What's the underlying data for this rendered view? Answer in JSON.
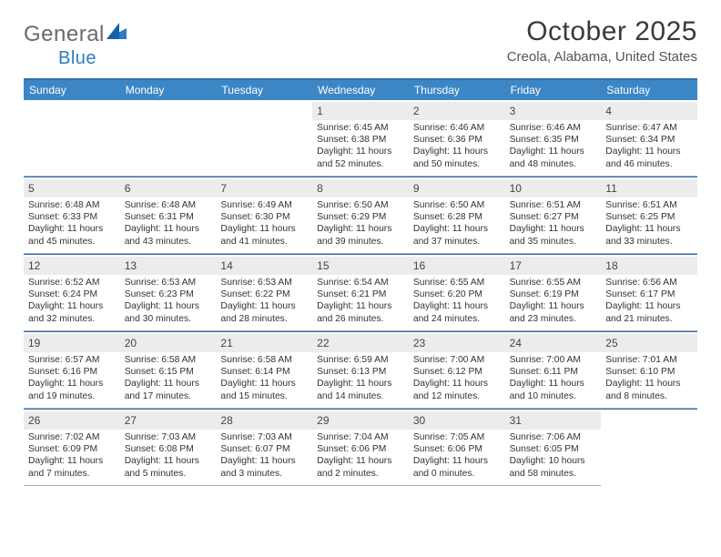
{
  "logo": {
    "general": "General",
    "blue": "Blue"
  },
  "title": "October 2025",
  "location": "Creola, Alabama, United States",
  "weekday_bg": "#3d86c6",
  "weekday_border": "#2e6fa8",
  "daynum_bg": "#ececec",
  "weekdays": [
    "Sunday",
    "Monday",
    "Tuesday",
    "Wednesday",
    "Thursday",
    "Friday",
    "Saturday"
  ],
  "blank_leading": 3,
  "days": [
    {
      "n": "1",
      "sr": "Sunrise: 6:45 AM",
      "ss": "Sunset: 6:38 PM",
      "dl": "Daylight: 11 hours and 52 minutes."
    },
    {
      "n": "2",
      "sr": "Sunrise: 6:46 AM",
      "ss": "Sunset: 6:36 PM",
      "dl": "Daylight: 11 hours and 50 minutes."
    },
    {
      "n": "3",
      "sr": "Sunrise: 6:46 AM",
      "ss": "Sunset: 6:35 PM",
      "dl": "Daylight: 11 hours and 48 minutes."
    },
    {
      "n": "4",
      "sr": "Sunrise: 6:47 AM",
      "ss": "Sunset: 6:34 PM",
      "dl": "Daylight: 11 hours and 46 minutes."
    },
    {
      "n": "5",
      "sr": "Sunrise: 6:48 AM",
      "ss": "Sunset: 6:33 PM",
      "dl": "Daylight: 11 hours and 45 minutes."
    },
    {
      "n": "6",
      "sr": "Sunrise: 6:48 AM",
      "ss": "Sunset: 6:31 PM",
      "dl": "Daylight: 11 hours and 43 minutes."
    },
    {
      "n": "7",
      "sr": "Sunrise: 6:49 AM",
      "ss": "Sunset: 6:30 PM",
      "dl": "Daylight: 11 hours and 41 minutes."
    },
    {
      "n": "8",
      "sr": "Sunrise: 6:50 AM",
      "ss": "Sunset: 6:29 PM",
      "dl": "Daylight: 11 hours and 39 minutes."
    },
    {
      "n": "9",
      "sr": "Sunrise: 6:50 AM",
      "ss": "Sunset: 6:28 PM",
      "dl": "Daylight: 11 hours and 37 minutes."
    },
    {
      "n": "10",
      "sr": "Sunrise: 6:51 AM",
      "ss": "Sunset: 6:27 PM",
      "dl": "Daylight: 11 hours and 35 minutes."
    },
    {
      "n": "11",
      "sr": "Sunrise: 6:51 AM",
      "ss": "Sunset: 6:25 PM",
      "dl": "Daylight: 11 hours and 33 minutes."
    },
    {
      "n": "12",
      "sr": "Sunrise: 6:52 AM",
      "ss": "Sunset: 6:24 PM",
      "dl": "Daylight: 11 hours and 32 minutes."
    },
    {
      "n": "13",
      "sr": "Sunrise: 6:53 AM",
      "ss": "Sunset: 6:23 PM",
      "dl": "Daylight: 11 hours and 30 minutes."
    },
    {
      "n": "14",
      "sr": "Sunrise: 6:53 AM",
      "ss": "Sunset: 6:22 PM",
      "dl": "Daylight: 11 hours and 28 minutes."
    },
    {
      "n": "15",
      "sr": "Sunrise: 6:54 AM",
      "ss": "Sunset: 6:21 PM",
      "dl": "Daylight: 11 hours and 26 minutes."
    },
    {
      "n": "16",
      "sr": "Sunrise: 6:55 AM",
      "ss": "Sunset: 6:20 PM",
      "dl": "Daylight: 11 hours and 24 minutes."
    },
    {
      "n": "17",
      "sr": "Sunrise: 6:55 AM",
      "ss": "Sunset: 6:19 PM",
      "dl": "Daylight: 11 hours and 23 minutes."
    },
    {
      "n": "18",
      "sr": "Sunrise: 6:56 AM",
      "ss": "Sunset: 6:17 PM",
      "dl": "Daylight: 11 hours and 21 minutes."
    },
    {
      "n": "19",
      "sr": "Sunrise: 6:57 AM",
      "ss": "Sunset: 6:16 PM",
      "dl": "Daylight: 11 hours and 19 minutes."
    },
    {
      "n": "20",
      "sr": "Sunrise: 6:58 AM",
      "ss": "Sunset: 6:15 PM",
      "dl": "Daylight: 11 hours and 17 minutes."
    },
    {
      "n": "21",
      "sr": "Sunrise: 6:58 AM",
      "ss": "Sunset: 6:14 PM",
      "dl": "Daylight: 11 hours and 15 minutes."
    },
    {
      "n": "22",
      "sr": "Sunrise: 6:59 AM",
      "ss": "Sunset: 6:13 PM",
      "dl": "Daylight: 11 hours and 14 minutes."
    },
    {
      "n": "23",
      "sr": "Sunrise: 7:00 AM",
      "ss": "Sunset: 6:12 PM",
      "dl": "Daylight: 11 hours and 12 minutes."
    },
    {
      "n": "24",
      "sr": "Sunrise: 7:00 AM",
      "ss": "Sunset: 6:11 PM",
      "dl": "Daylight: 11 hours and 10 minutes."
    },
    {
      "n": "25",
      "sr": "Sunrise: 7:01 AM",
      "ss": "Sunset: 6:10 PM",
      "dl": "Daylight: 11 hours and 8 minutes."
    },
    {
      "n": "26",
      "sr": "Sunrise: 7:02 AM",
      "ss": "Sunset: 6:09 PM",
      "dl": "Daylight: 11 hours and 7 minutes."
    },
    {
      "n": "27",
      "sr": "Sunrise: 7:03 AM",
      "ss": "Sunset: 6:08 PM",
      "dl": "Daylight: 11 hours and 5 minutes."
    },
    {
      "n": "28",
      "sr": "Sunrise: 7:03 AM",
      "ss": "Sunset: 6:07 PM",
      "dl": "Daylight: 11 hours and 3 minutes."
    },
    {
      "n": "29",
      "sr": "Sunrise: 7:04 AM",
      "ss": "Sunset: 6:06 PM",
      "dl": "Daylight: 11 hours and 2 minutes."
    },
    {
      "n": "30",
      "sr": "Sunrise: 7:05 AM",
      "ss": "Sunset: 6:06 PM",
      "dl": "Daylight: 11 hours and 0 minutes."
    },
    {
      "n": "31",
      "sr": "Sunrise: 7:06 AM",
      "ss": "Sunset: 6:05 PM",
      "dl": "Daylight: 10 hours and 58 minutes."
    }
  ]
}
